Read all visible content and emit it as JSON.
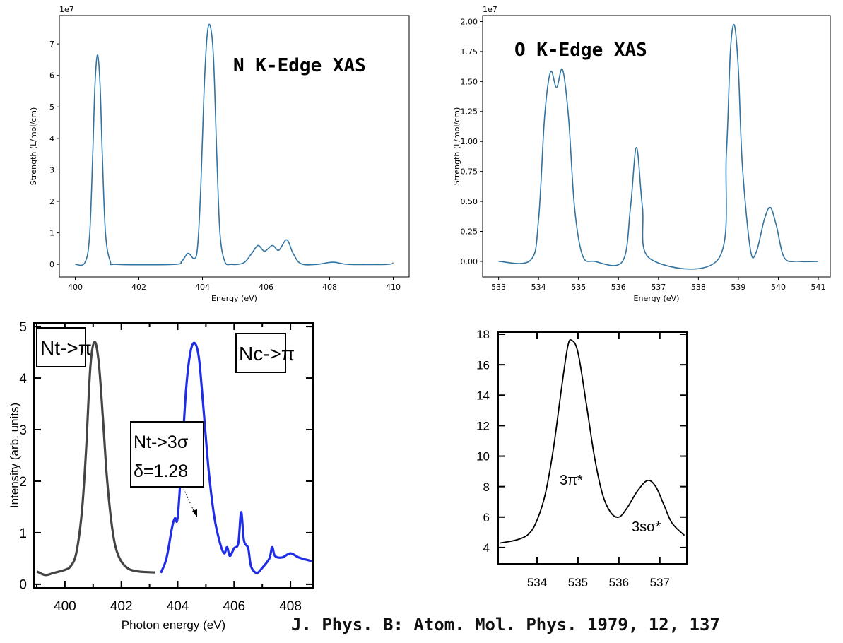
{
  "citation": "J. Phys. B: Atom. Mol. Phys. 1979, 12, 137",
  "chart_data": [
    {
      "type": "line",
      "title": "N K-Edge XAS",
      "xlabel": "Energy (eV)",
      "ylabel": "Strength (L/mol/cm)",
      "y_multiplier": "1e7",
      "xlim": [
        399.5,
        410.5
      ],
      "ylim": [
        -0.4,
        7.9
      ],
      "xticks": [
        "400",
        "402",
        "404",
        "406",
        "408",
        "410"
      ],
      "yticks": [
        "0",
        "1",
        "2",
        "3",
        "4",
        "5",
        "6",
        "7"
      ],
      "grid": false,
      "series": [
        {
          "color": "#3274a1",
          "x": [
            400,
            400.3,
            400.45,
            400.55,
            400.62,
            400.7,
            400.78,
            400.85,
            400.95,
            401.1,
            401.3,
            403.1,
            403.35,
            403.55,
            403.75,
            403.85,
            403.95,
            404.05,
            404.15,
            404.25,
            404.35,
            404.45,
            404.55,
            404.7,
            404.9,
            405.3,
            405.55,
            405.75,
            405.95,
            406.2,
            406.4,
            406.65,
            406.85,
            407.1,
            407.6,
            408.1,
            408.6,
            409.8,
            410
          ],
          "y": [
            0,
            0.05,
            0.9,
            3.5,
            5.7,
            6.65,
            5.7,
            3.5,
            1.0,
            0.1,
            0,
            0,
            0.1,
            0.35,
            0.18,
            0.6,
            2.5,
            5.5,
            7.3,
            7.55,
            6.5,
            3.5,
            1.0,
            0.1,
            0,
            0.05,
            0.35,
            0.6,
            0.42,
            0.6,
            0.45,
            0.78,
            0.35,
            0.02,
            0,
            0.07,
            0,
            0,
            0.05
          ]
        }
      ]
    },
    {
      "type": "line",
      "title": "O K-Edge XAS",
      "xlabel": "Energy (eV)",
      "ylabel": "Strength (L/mol/cm)",
      "y_multiplier": "1e7",
      "xlim": [
        532.6,
        541.3
      ],
      "ylim": [
        -0.13,
        2.05
      ],
      "xticks": [
        "533",
        "534",
        "535",
        "536",
        "537",
        "538",
        "539",
        "540",
        "541"
      ],
      "yticks": [
        "0.00",
        "0.25",
        "0.50",
        "0.75",
        "1.00",
        "1.25",
        "1.50",
        "1.75",
        "2.00"
      ],
      "grid": false,
      "series": [
        {
          "color": "#3274a1",
          "x": [
            533,
            533.8,
            534.0,
            534.15,
            534.3,
            534.45,
            534.6,
            534.75,
            534.9,
            535.1,
            535.4,
            536.1,
            536.3,
            536.45,
            536.6,
            536.8,
            538.5,
            538.7,
            538.8,
            538.9,
            539.0,
            539.1,
            539.3,
            539.45,
            539.65,
            539.8,
            539.95,
            540.15,
            540.5,
            541
          ],
          "y": [
            0,
            0.01,
            0.35,
            1.2,
            1.58,
            1.45,
            1.6,
            1.2,
            0.45,
            0.05,
            0,
            0,
            0.45,
            0.95,
            0.45,
            0.02,
            0.02,
            0.9,
            1.75,
            1.97,
            1.6,
            0.8,
            0.1,
            0.08,
            0.35,
            0.45,
            0.3,
            0.03,
            0,
            0
          ]
        }
      ]
    },
    {
      "type": "line",
      "xlabel": "Photon energy (eV)",
      "ylabel": "Intensity (arb. units)",
      "xlim": [
        398.9,
        408.8
      ],
      "ylim": [
        -0.07,
        5.07
      ],
      "xticks": [
        "400",
        "402",
        "404",
        "406",
        "408"
      ],
      "yticks": [
        "0",
        "1",
        "2",
        "3",
        "4",
        "5"
      ],
      "grid": false,
      "annotations": [
        "Nt->π",
        "Nc->π",
        "Nt->3σ",
        "δ=1.28"
      ],
      "series": [
        {
          "color": "#444444",
          "x": [
            399.0,
            399.3,
            399.6,
            400.0,
            400.2,
            400.4,
            400.6,
            400.75,
            400.9,
            401.05,
            401.2,
            401.35,
            401.5,
            401.7,
            401.9,
            402.2,
            402.6,
            403.2
          ],
          "y": [
            0.25,
            0.18,
            0.22,
            0.28,
            0.35,
            0.6,
            1.4,
            2.6,
            4.2,
            4.7,
            4.3,
            3.2,
            2.0,
            1.0,
            0.55,
            0.32,
            0.25,
            0.23
          ]
        },
        {
          "color": "#1f2de8",
          "x": [
            403.4,
            403.6,
            403.8,
            403.9,
            404.0,
            404.15,
            404.3,
            404.45,
            404.6,
            404.75,
            404.9,
            405.1,
            405.3,
            405.5,
            405.65,
            405.75,
            405.85,
            406.0,
            406.15,
            406.25,
            406.35,
            406.5,
            406.6,
            406.8,
            407.0,
            407.25,
            407.35,
            407.45,
            407.7,
            408.0,
            408.3,
            408.75
          ],
          "y": [
            0.22,
            0.5,
            1.1,
            1.28,
            1.3,
            2.5,
            3.8,
            4.5,
            4.68,
            4.4,
            3.5,
            2.2,
            1.3,
            0.8,
            0.6,
            0.72,
            0.55,
            0.7,
            0.8,
            1.4,
            0.85,
            0.7,
            0.35,
            0.22,
            0.32,
            0.5,
            0.72,
            0.55,
            0.52,
            0.6,
            0.52,
            0.45
          ]
        }
      ]
    },
    {
      "type": "line",
      "xlim": [
        533.05,
        537.66
      ],
      "ylim": [
        2.93,
        18.14
      ],
      "xticks": [
        "534",
        "535",
        "536",
        "537"
      ],
      "yticks": [
        "4",
        "6",
        "8",
        "10",
        "12",
        "14",
        "16",
        "18"
      ],
      "grid": false,
      "annotations": [
        "3π*",
        "3sσ*"
      ],
      "series": [
        {
          "color": "#000000",
          "x": [
            533.1,
            533.5,
            533.8,
            534.0,
            534.2,
            534.4,
            534.6,
            534.75,
            534.85,
            535.0,
            535.2,
            535.4,
            535.6,
            535.8,
            536.0,
            536.2,
            536.45,
            536.7,
            536.9,
            537.1,
            537.3,
            537.6
          ],
          "y": [
            4.3,
            4.5,
            4.9,
            5.8,
            7.5,
            10.5,
            14.5,
            17.2,
            17.6,
            16.8,
            13.5,
            10.0,
            7.5,
            6.3,
            6.0,
            6.6,
            7.7,
            8.4,
            8.0,
            6.8,
            5.6,
            4.8
          ]
        }
      ]
    }
  ]
}
